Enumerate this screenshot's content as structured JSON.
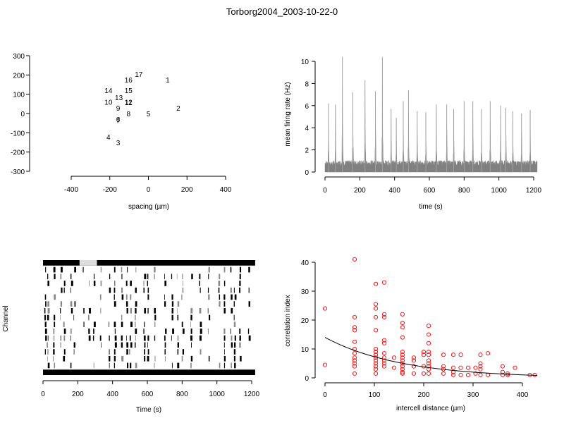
{
  "figure": {
    "title": "Torborg2004_2003-10-22-0"
  },
  "chart_data": [
    {
      "type": "scatter",
      "panel": "electrode layout",
      "xlabel": "spacing (µm)",
      "ylabel": "",
      "xlim": [
        -400,
        400
      ],
      "ylim": [
        -300,
        300
      ],
      "xticks": [
        -400,
        -200,
        0,
        200,
        400
      ],
      "yticks": [
        -300,
        -200,
        -100,
        0,
        100,
        200,
        300
      ],
      "points": [
        {
          "label": "1",
          "x": 100,
          "y": 175
        },
        {
          "label": "2",
          "x": 155,
          "y": 30
        },
        {
          "label": "3",
          "x": -157,
          "y": -150
        },
        {
          "label": "4",
          "x": -207,
          "y": -120
        },
        {
          "label": "5",
          "x": 0,
          "y": 0
        },
        {
          "label": "6",
          "x": -157,
          "y": -30
        },
        {
          "label": "7",
          "x": -157,
          "y": -35
        },
        {
          "label": "8",
          "x": -103,
          "y": 0
        },
        {
          "label": "9",
          "x": -157,
          "y": 30
        },
        {
          "label": "10",
          "x": -207,
          "y": 60
        },
        {
          "label": "11",
          "x": -103,
          "y": 58
        },
        {
          "label": "12",
          "x": -103,
          "y": 60
        },
        {
          "label": "13",
          "x": -153,
          "y": 85
        },
        {
          "label": "14",
          "x": -207,
          "y": 120
        },
        {
          "label": "15",
          "x": -103,
          "y": 120
        },
        {
          "label": "16",
          "x": -103,
          "y": 175
        },
        {
          "label": "17",
          "x": -50,
          "y": 205
        }
      ]
    },
    {
      "type": "line",
      "panel": "firing rate",
      "xlabel": "time (s)",
      "ylabel": "mean firing rate (Hz)",
      "xlim": [
        0,
        1220
      ],
      "ylim": [
        0,
        10
      ],
      "xticks": [
        0,
        200,
        400,
        600,
        800,
        1000,
        1200
      ],
      "yticks": [
        0,
        2,
        4,
        6,
        8,
        10
      ],
      "color": "#808080",
      "baseline": 1.0,
      "peaks": [
        {
          "t": 20,
          "v": 6.2
        },
        {
          "t": 60,
          "v": 6.1
        },
        {
          "t": 100,
          "v": 10.4
        },
        {
          "t": 160,
          "v": 7.2
        },
        {
          "t": 230,
          "v": 8.3
        },
        {
          "t": 290,
          "v": 7.3
        },
        {
          "t": 330,
          "v": 10.4
        },
        {
          "t": 380,
          "v": 5.7
        },
        {
          "t": 410,
          "v": 4.9
        },
        {
          "t": 450,
          "v": 6.4
        },
        {
          "t": 480,
          "v": 7.4
        },
        {
          "t": 530,
          "v": 5.5
        },
        {
          "t": 580,
          "v": 5.4
        },
        {
          "t": 640,
          "v": 6.1
        },
        {
          "t": 700,
          "v": 6.1
        },
        {
          "t": 740,
          "v": 5.7
        },
        {
          "t": 800,
          "v": 6.4
        },
        {
          "t": 850,
          "v": 6.4
        },
        {
          "t": 900,
          "v": 5.7
        },
        {
          "t": 950,
          "v": 6.4
        },
        {
          "t": 1010,
          "v": 6.0
        },
        {
          "t": 1040,
          "v": 5.8
        },
        {
          "t": 1080,
          "v": 5.5
        },
        {
          "t": 1130,
          "v": 5.3
        },
        {
          "t": 1180,
          "v": 5.6
        }
      ]
    },
    {
      "type": "raster",
      "panel": "spike raster",
      "xlabel": "Time (s)",
      "ylabel": "Channel",
      "xlim": [
        0,
        1220
      ],
      "xticks": [
        0,
        200,
        400,
        600,
        800,
        1000,
        1200
      ],
      "n_channels": 17,
      "burst_times": [
        10,
        25,
        60,
        100,
        118,
        160,
        178,
        230,
        262,
        290,
        330,
        380,
        410,
        450,
        480,
        500,
        530,
        580,
        600,
        640,
        700,
        740,
        772,
        800,
        850,
        900,
        950,
        1010,
        1040,
        1080,
        1100,
        1130,
        1180
      ]
    },
    {
      "type": "scatter",
      "panel": "correlation vs distance",
      "xlabel": "intercell distance (µm)",
      "ylabel": "correlation index",
      "xlim": [
        0,
        430
      ],
      "ylim": [
        0,
        40
      ],
      "xticks": [
        0,
        100,
        200,
        300,
        400
      ],
      "yticks": [
        0,
        10,
        20,
        30,
        40
      ],
      "marker_color": "#ff0000",
      "points": [
        [
          0,
          24
        ],
        [
          0,
          4.5
        ],
        [
          60,
          41
        ],
        [
          60,
          21
        ],
        [
          60,
          17.5
        ],
        [
          60,
          16.5
        ],
        [
          60,
          12.5
        ],
        [
          60,
          10
        ],
        [
          60,
          8.5
        ],
        [
          60,
          7
        ],
        [
          60,
          6
        ],
        [
          60,
          5
        ],
        [
          60,
          4
        ],
        [
          60,
          1.5
        ],
        [
          103,
          32.5
        ],
        [
          103,
          25.5
        ],
        [
          103,
          24
        ],
        [
          103,
          21
        ],
        [
          103,
          16.5
        ],
        [
          103,
          10
        ],
        [
          103,
          9
        ],
        [
          103,
          8
        ],
        [
          103,
          7
        ],
        [
          103,
          6
        ],
        [
          103,
          5
        ],
        [
          103,
          4
        ],
        [
          103,
          3
        ],
        [
          103,
          1.5
        ],
        [
          120,
          33
        ],
        [
          120,
          22
        ],
        [
          120,
          21
        ],
        [
          120,
          13
        ],
        [
          120,
          12
        ],
        [
          120,
          8.5
        ],
        [
          120,
          7
        ],
        [
          120,
          6
        ],
        [
          120,
          5
        ],
        [
          120,
          4
        ],
        [
          140,
          7
        ],
        [
          140,
          3.5
        ],
        [
          157,
          22
        ],
        [
          157,
          19
        ],
        [
          157,
          17.5
        ],
        [
          157,
          14
        ],
        [
          157,
          9
        ],
        [
          157,
          8
        ],
        [
          157,
          7
        ],
        [
          157,
          6
        ],
        [
          157,
          5
        ],
        [
          157,
          4
        ],
        [
          157,
          3
        ],
        [
          157,
          2
        ],
        [
          157,
          1.5
        ],
        [
          180,
          7
        ],
        [
          180,
          6
        ],
        [
          180,
          4
        ],
        [
          180,
          1.5
        ],
        [
          200,
          9
        ],
        [
          200,
          8
        ],
        [
          200,
          4
        ],
        [
          200,
          1.5
        ],
        [
          210,
          18
        ],
        [
          210,
          15
        ],
        [
          210,
          12
        ],
        [
          210,
          9
        ],
        [
          210,
          8
        ],
        [
          210,
          6
        ],
        [
          210,
          5
        ],
        [
          210,
          4
        ],
        [
          210,
          3
        ],
        [
          210,
          1.5
        ],
        [
          240,
          8
        ],
        [
          240,
          4
        ],
        [
          240,
          3
        ],
        [
          240,
          1.5
        ],
        [
          260,
          8
        ],
        [
          260,
          3.5
        ],
        [
          260,
          2
        ],
        [
          260,
          1
        ],
        [
          275,
          8
        ],
        [
          275,
          3.5
        ],
        [
          275,
          1
        ],
        [
          290,
          3.5
        ],
        [
          290,
          1
        ],
        [
          305,
          3.5
        ],
        [
          305,
          1.5
        ],
        [
          315,
          8
        ],
        [
          315,
          5
        ],
        [
          315,
          4
        ],
        [
          315,
          3
        ],
        [
          315,
          1
        ],
        [
          330,
          8.5
        ],
        [
          330,
          1
        ],
        [
          360,
          4
        ],
        [
          360,
          2
        ],
        [
          360,
          1
        ],
        [
          370,
          1.5
        ],
        [
          370,
          1
        ],
        [
          385,
          3.5
        ],
        [
          415,
          1
        ],
        [
          425,
          1
        ]
      ],
      "fit_curve": {
        "type": "exponential",
        "a": 14,
        "b": 0.0065
      }
    }
  ]
}
